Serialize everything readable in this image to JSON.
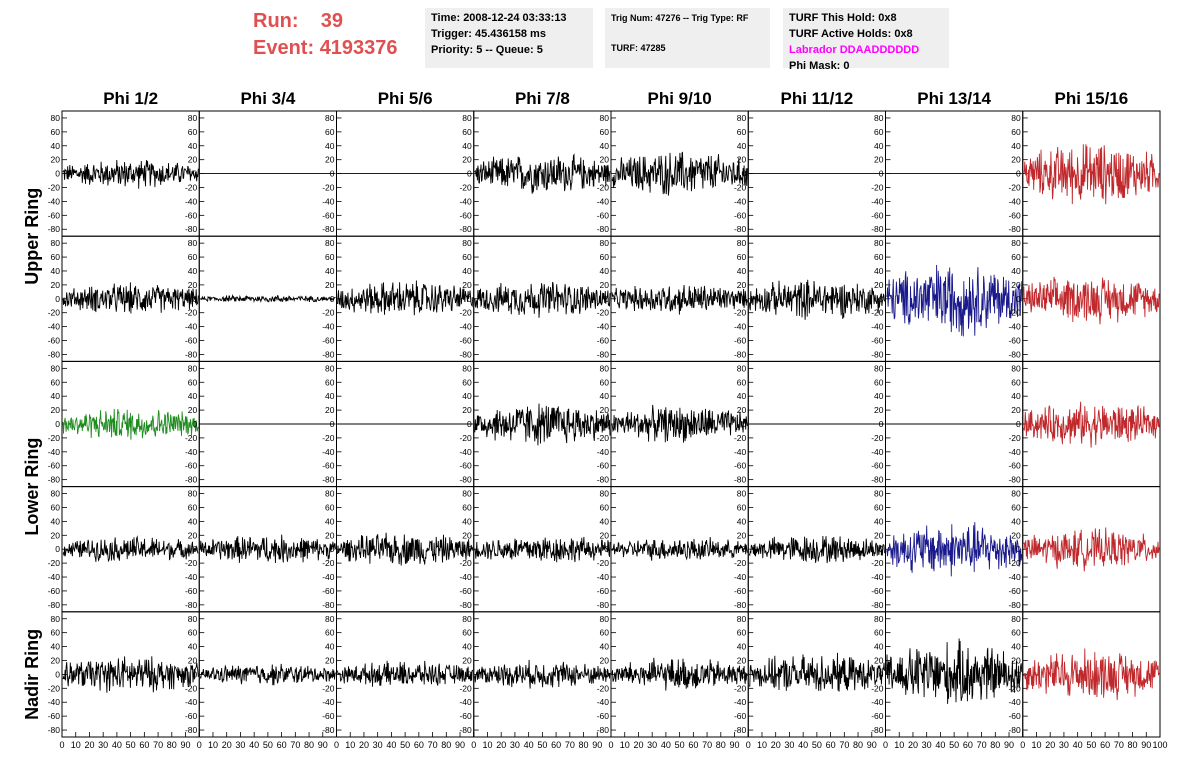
{
  "header": {
    "run_label": "Run:",
    "run_value": "39",
    "event_label": "Event:",
    "event_value": "4193376",
    "accent_color": "#e05050"
  },
  "info_time": {
    "time": "Time: 2008-12-24 03:33:13",
    "trigger": "Trigger: 45.436158 ms",
    "priority": "Priority: 5 -- Queue: 5"
  },
  "info_trig": {
    "trig": "Trig Num: 47276 -- Trig Type: RF",
    "turf": "TURF: 47285"
  },
  "info_turf": {
    "this_hold": "TURF This Hold: 0x8",
    "active_holds": "TURF Active Holds: 0x8",
    "labrador": "Labrador DDAADDDDDD",
    "phi_mask": "Phi Mask: 0",
    "labrador_color": "#ff00ff"
  },
  "chart_data": {
    "type": "line",
    "columns": [
      "Phi 1/2",
      "Phi 3/4",
      "Phi 5/6",
      "Phi 7/8",
      "Phi 9/10",
      "Phi 11/12",
      "Phi 13/14",
      "Phi 15/16"
    ],
    "row_groups": [
      "Upper Ring",
      "Lower Ring",
      "Nadir Ring"
    ],
    "rows": 5,
    "ylim": [
      -90,
      90
    ],
    "ytick_labels": [
      "80",
      "60",
      "40",
      "20",
      "0",
      "-20",
      "-40",
      "-60",
      "-80"
    ],
    "xlim": [
      0,
      100
    ],
    "xtick_labels": [
      "0",
      "10",
      "20",
      "30",
      "40",
      "50",
      "60",
      "70",
      "80",
      "90",
      "100"
    ],
    "colors": {
      "default": "#000000",
      "red": "#c0282c",
      "blue": "#1a1a8c",
      "green": "#1e8c1e"
    },
    "panels": [
      [
        "black:16",
        "flat:0",
        "flat:0",
        "black:22",
        "black:25",
        "flat:0",
        "flat:0",
        "red:34"
      ],
      [
        "black:17",
        "black:4",
        "black:20",
        "black:20",
        "black:17",
        "black:22",
        "blue:40",
        "red:26"
      ],
      [
        "green:18",
        "flat:0",
        "flat:0",
        "black:24",
        "black:20",
        "flat:0",
        "flat:0",
        "red:24"
      ],
      [
        "black:14",
        "black:16",
        "black:18",
        "black:16",
        "black:13",
        "black:16",
        "blue:30",
        "red:22"
      ],
      [
        "black:20",
        "black:12",
        "black:14",
        "black:15",
        "black:18",
        "black:22",
        "black:36",
        "red:28"
      ]
    ]
  }
}
